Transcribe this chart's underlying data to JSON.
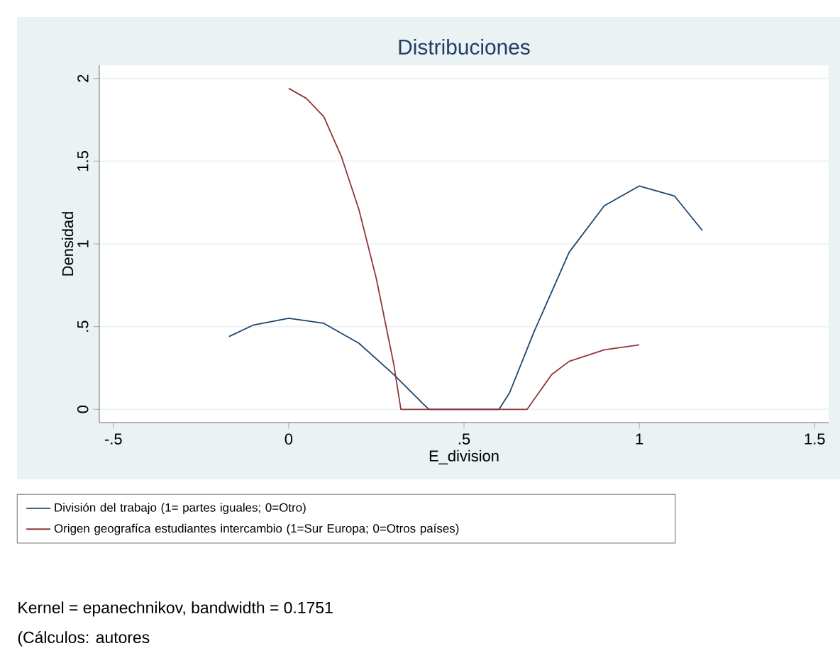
{
  "chart_data": {
    "type": "line",
    "title": "Distribuciones",
    "xlabel": "E_division",
    "ylabel": "Densidad",
    "xlim": [
      -0.54,
      1.54
    ],
    "ylim": [
      -0.08,
      2.08
    ],
    "xticks": [
      {
        "value": -0.5,
        "label": "-.5"
      },
      0,
      {
        "value": 0.5,
        "label": ".5"
      },
      1,
      1.5
    ],
    "yticks": [
      0,
      {
        "value": 0.5,
        "label": ".5"
      },
      1,
      1.5,
      2
    ],
    "grid": "y",
    "legend": "bottom",
    "series": [
      {
        "name": "División del trabajo (1= partes iguales; 0=Otro)",
        "color": "#1a476f",
        "x": [
          -0.17,
          -0.1,
          0,
          0.1,
          0.2,
          0.3,
          0.38,
          0.4,
          0.6,
          0.63,
          0.7,
          0.8,
          0.9,
          1.0,
          1.1,
          1.18
        ],
        "values": [
          0.44,
          0.51,
          0.55,
          0.52,
          0.4,
          0.21,
          0.04,
          0,
          0,
          0.1,
          0.47,
          0.95,
          1.23,
          1.35,
          1.29,
          1.08
        ]
      },
      {
        "name": "Origen geografíca estudiantes intercambio (1=Sur Europa; 0=Otros países)",
        "color": "#90353b",
        "x": [
          0,
          0.05,
          0.1,
          0.15,
          0.2,
          0.25,
          0.3,
          0.32,
          0.68,
          0.75,
          0.8,
          0.9,
          1.0
        ],
        "values": [
          1.94,
          1.88,
          1.77,
          1.53,
          1.21,
          0.79,
          0.27,
          0,
          0,
          0.21,
          0.29,
          0.36,
          0.39
        ]
      }
    ],
    "annotations": [
      "Kernel = epanechnikov, bandwidth = 0.1751",
      "(Cálculos: autores"
    ]
  }
}
